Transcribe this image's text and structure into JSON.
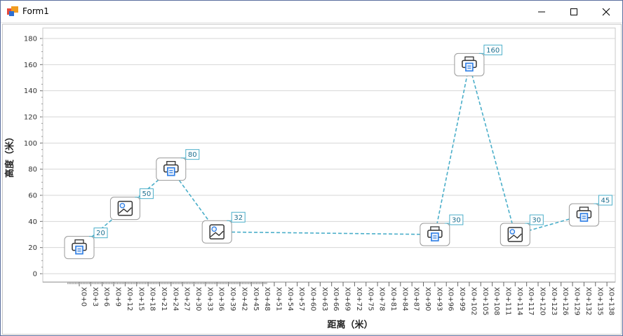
{
  "window": {
    "title": "Form1",
    "icon": "windows-forms-app-icon",
    "controls": [
      "minimize-icon",
      "maximize-icon",
      "close-icon"
    ]
  },
  "chart_data": {
    "type": "line",
    "xlabel": "距离（米）",
    "ylabel": "高度（米）",
    "ylim": [
      0,
      180
    ],
    "yticks": [
      0,
      20,
      40,
      60,
      80,
      100,
      120,
      140,
      160,
      180
    ],
    "categories": [
      "X0+0",
      "X0+3",
      "X0+6",
      "X0+9",
      "X0+12",
      "X0+15",
      "X0+18",
      "X0+21",
      "X0+24",
      "X0+27",
      "X0+30",
      "X0+33",
      "X0+36",
      "X0+39",
      "X0+42",
      "X0+45",
      "X0+48",
      "X0+51",
      "X0+54",
      "X0+57",
      "X0+60",
      "X0+63",
      "X0+66",
      "X0+69",
      "X0+72",
      "X0+75",
      "X0+78",
      "X0+81",
      "X0+84",
      "X0+87",
      "X0+90",
      "X0+93",
      "X0+96",
      "X0+99",
      "X0+102",
      "X0+105",
      "X0+108",
      "X0+111",
      "X0+114",
      "X0+117",
      "X0+120",
      "X0+123",
      "X0+126",
      "X0+129",
      "X0+132",
      "X0+135",
      "X0+138"
    ],
    "grid": true,
    "line_style": "dashed",
    "line_color": "#4aaec9",
    "points": [
      {
        "x": "X0+0",
        "y": 20,
        "label": "20",
        "icon": "printer-icon"
      },
      {
        "x": "X0+12",
        "y": 50,
        "label": "50",
        "icon": "image-icon"
      },
      {
        "x": "X0+24",
        "y": 80,
        "label": "80",
        "icon": "printer-icon"
      },
      {
        "x": "X0+36",
        "y": 32,
        "label": "32",
        "icon": "image-icon"
      },
      {
        "x": "X0+93",
        "y": 30,
        "label": "30",
        "icon": "printer-icon"
      },
      {
        "x": "X0+102",
        "y": 160,
        "label": "160",
        "icon": "printer-icon"
      },
      {
        "x": "X0+114",
        "y": 30,
        "label": "30",
        "icon": "image-icon"
      },
      {
        "x": "X0+132",
        "y": 45,
        "label": "45",
        "icon": "printer-icon"
      }
    ]
  }
}
